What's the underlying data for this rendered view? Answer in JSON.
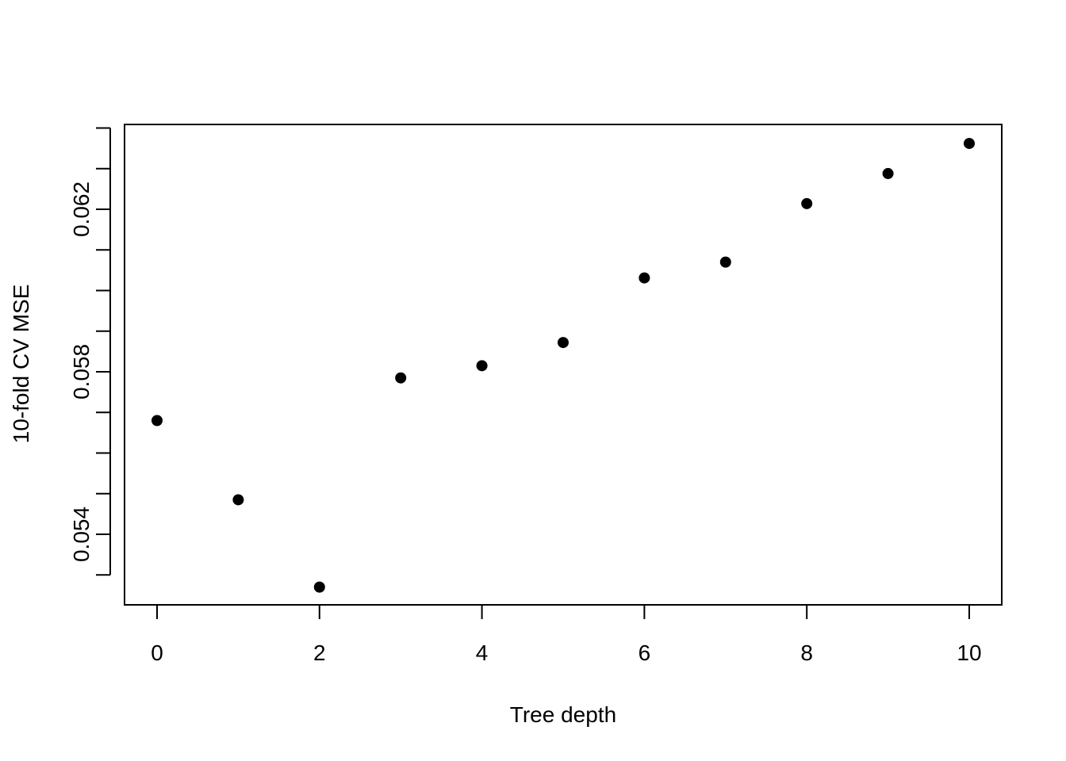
{
  "chart_data": {
    "type": "scatter",
    "title": "",
    "xlabel": "Tree depth",
    "ylabel": "10-fold CV MSE",
    "x": [
      0,
      1,
      2,
      3,
      4,
      5,
      6,
      7,
      8,
      9,
      10
    ],
    "y": [
      0.0568,
      0.05485,
      0.0527,
      0.05785,
      0.05815,
      0.05872,
      0.06031,
      0.0607,
      0.06214,
      0.06288,
      0.06362
    ],
    "xlim": [
      0,
      10
    ],
    "ylim": [
      0.0525,
      0.0636
    ],
    "x_ticks": [
      0,
      2,
      4,
      6,
      8,
      10
    ],
    "x_tick_labels": [
      "0",
      "2",
      "4",
      "6",
      "8",
      "10"
    ],
    "y_ticks": [
      0.053,
      0.054,
      0.055,
      0.056,
      0.057,
      0.058,
      0.059,
      0.06,
      0.061,
      0.062,
      0.063,
      0.064
    ],
    "y_tick_labels": [
      "",
      "0.054",
      "",
      "",
      "",
      "0.058",
      "",
      "",
      "",
      "0.062",
      "",
      ""
    ],
    "grid": false,
    "legend": "none",
    "point_color": "#000000"
  }
}
